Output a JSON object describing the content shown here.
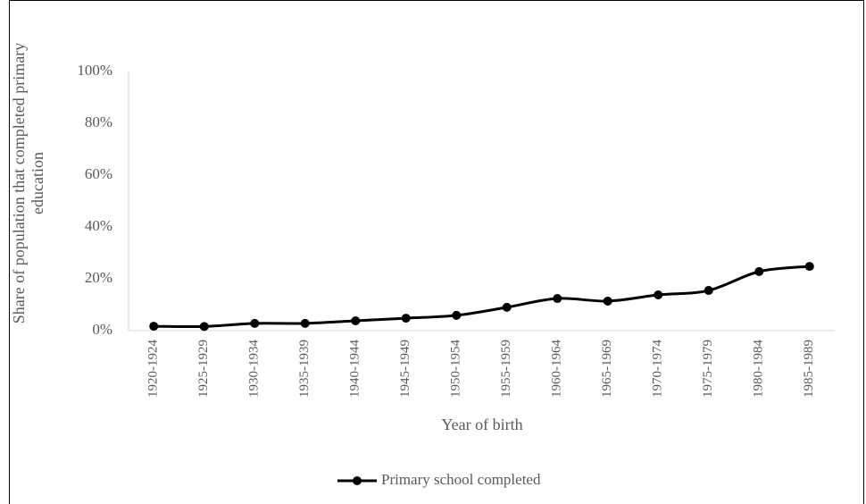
{
  "chart_data": {
    "type": "line",
    "x_label": "Year of birth",
    "y_label": "Share of population that completed primary education",
    "categories": [
      "1920-1924",
      "1925-1929",
      "1930-1934",
      "1935-1939",
      "1940-1944",
      "1945-1949",
      "1950-1954",
      "1955-1959",
      "1960-1964",
      "1965-1969",
      "1970-1974",
      "1975-1979",
      "1980-1984",
      "1985-1989"
    ],
    "series": [
      {
        "name": "Primary school completed",
        "color": "#000000",
        "values": [
          1.7,
          1.6,
          2.8,
          2.8,
          3.8,
          4.8,
          5.9,
          9.0,
          12.4,
          11.4,
          13.8,
          15.5,
          22.8,
          24.8
        ]
      }
    ],
    "ylim": [
      0,
      100
    ],
    "yticks": [
      {
        "value": 0,
        "label": "0%"
      },
      {
        "value": 20,
        "label": "20%"
      },
      {
        "value": 40,
        "label": "40%"
      },
      {
        "value": 60,
        "label": "60%"
      },
      {
        "value": 80,
        "label": "80%"
      },
      {
        "value": 100,
        "label": "100%"
      }
    ],
    "grid": false,
    "legend": "bottom"
  }
}
